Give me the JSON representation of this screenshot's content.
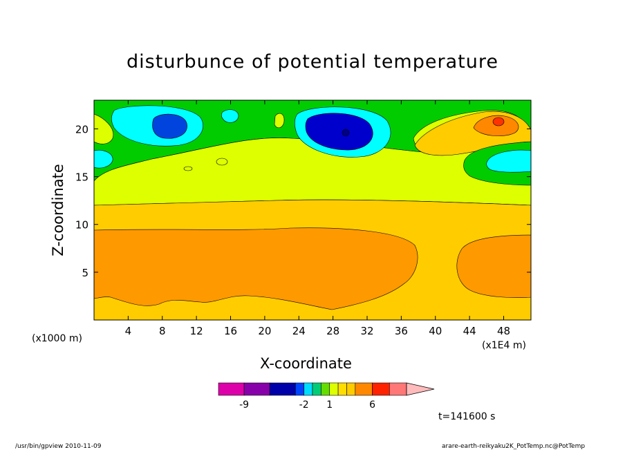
{
  "chart_data": {
    "type": "heatmap",
    "title": "disturbunce of potential temperature",
    "xlabel": "X-coordinate",
    "ylabel": "Z-coordinate",
    "x_unit": "(x1E4 m)",
    "y_unit": "(x1000 m)",
    "xlim": [
      0,
      51.2
    ],
    "ylim": [
      0,
      23
    ],
    "x_ticks": [
      "4",
      "8",
      "12",
      "16",
      "20",
      "24",
      "28",
      "32",
      "36",
      "40",
      "44",
      "48"
    ],
    "y_ticks": [
      "5",
      "10",
      "15",
      "20"
    ],
    "colorbar": {
      "levels": [
        -12,
        -9,
        -6,
        -3,
        -2,
        -1,
        0,
        1,
        2,
        3,
        4,
        6,
        8,
        10
      ],
      "labels": [
        "-9",
        "-2",
        "1",
        "6"
      ],
      "colors": [
        "#dd00aa",
        "#8800aa",
        "#0000aa",
        "#0044ff",
        "#00ddff",
        "#00cc77",
        "#66dd00",
        "#ddff00",
        "#ffdd00",
        "#ffcc00",
        "#ff8800",
        "#ff2200",
        "#ff7777",
        "#ffbbbb"
      ]
    },
    "regions": [
      {
        "name": "cool-anomaly-upper-left",
        "x": [
          6,
          11
        ],
        "z": [
          19,
          23
        ],
        "min_value": -3
      },
      {
        "name": "cool-anomaly-upper-center",
        "x": [
          24,
          35
        ],
        "z": [
          17.5,
          22.5
        ],
        "min_value": -6
      },
      {
        "name": "warm-anomaly-upper-right",
        "x": [
          38,
          51
        ],
        "z": [
          18,
          23
        ],
        "max_value": 4
      },
      {
        "name": "warm-layer-lower",
        "x": [
          0,
          51.2
        ],
        "z": [
          1,
          9.5
        ],
        "value": 3
      }
    ]
  },
  "time_label": "t=141600 s",
  "footer": {
    "left": "/usr/bin/gpview  2010-11-09",
    "right": "arare-earth-reikyaku2K_PotTemp.nc@PotTemp"
  }
}
